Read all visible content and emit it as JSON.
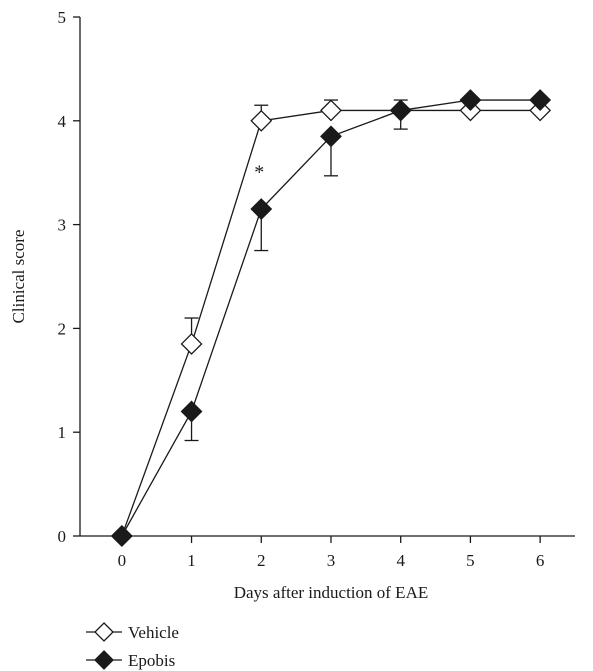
{
  "chart_data": {
    "type": "line",
    "xlabel": "Days after induction of EAE",
    "ylabel": "Clinical score",
    "x": [
      0,
      1,
      2,
      3,
      4,
      5,
      6
    ],
    "xlim": [
      -0.6,
      6.5
    ],
    "ylim": [
      0,
      5
    ],
    "x_ticks": [
      "0",
      "1",
      "2",
      "3",
      "4",
      "5",
      "6"
    ],
    "y_ticks": [
      "0",
      "1",
      "2",
      "3",
      "4",
      "5"
    ],
    "grid": false,
    "legend_position": "bottom-left",
    "series": [
      {
        "name": "Vehicle",
        "marker": "open-diamond",
        "values": [
          0,
          1.85,
          4.0,
          4.1,
          4.1,
          4.1,
          4.1
        ],
        "error": [
          0,
          0.25,
          0.15,
          0.1,
          0.1,
          0,
          0
        ],
        "error_direction": "up"
      },
      {
        "name": "Epobis",
        "marker": "filled-diamond",
        "values": [
          0,
          1.2,
          3.15,
          3.85,
          4.1,
          4.2,
          4.2
        ],
        "error": [
          0,
          0.28,
          0.4,
          0.38,
          0.18,
          0,
          0
        ],
        "error_direction": "down"
      }
    ],
    "annotations": [
      {
        "text": "*",
        "x": 2,
        "y": 3.5
      }
    ]
  },
  "colors": {
    "ink": "#1a1a1a",
    "open_fill": "#ffffff",
    "filled": "#1a1a1a"
  }
}
